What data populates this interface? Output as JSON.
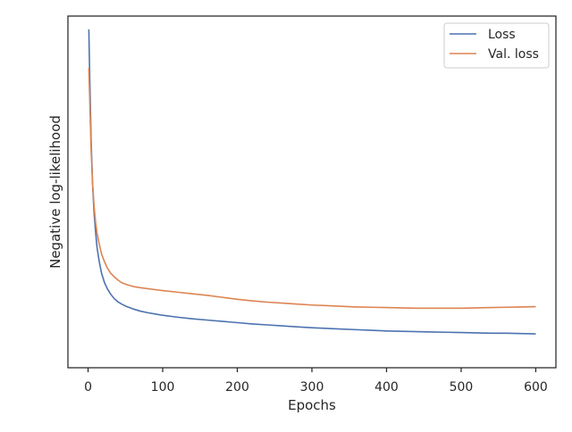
{
  "chart_data": {
    "type": "line",
    "xlabel": "Epochs",
    "ylabel": "Negative log-likelihood",
    "title": "",
    "xlim": [
      -27,
      627
    ],
    "ylim": [
      0,
      1
    ],
    "x_ticks": [
      0,
      100,
      200,
      300,
      400,
      500,
      600
    ],
    "x_tick_labels": [
      "0",
      "100",
      "200",
      "300",
      "400",
      "500",
      "600"
    ],
    "y_ticks": [],
    "grid": false,
    "legend_placement": "top-right",
    "series": [
      {
        "name": "Loss",
        "color": "#4c72b0",
        "x": [
          1,
          2,
          4,
          6,
          8,
          10,
          12,
          15,
          18,
          22,
          26,
          30,
          35,
          40,
          45,
          50,
          60,
          70,
          80,
          90,
          100,
          120,
          140,
          160,
          180,
          200,
          220,
          240,
          260,
          280,
          300,
          320,
          340,
          360,
          380,
          400,
          420,
          440,
          460,
          480,
          500,
          520,
          540,
          560,
          580,
          600
        ],
        "y": [
          1.0,
          0.88,
          0.66,
          0.52,
          0.43,
          0.37,
          0.32,
          0.275,
          0.24,
          0.21,
          0.19,
          0.175,
          0.16,
          0.15,
          0.143,
          0.137,
          0.128,
          0.121,
          0.116,
          0.112,
          0.108,
          0.102,
          0.097,
          0.093,
          0.089,
          0.085,
          0.081,
          0.078,
          0.075,
          0.072,
          0.069,
          0.067,
          0.065,
          0.063,
          0.061,
          0.059,
          0.058,
          0.057,
          0.056,
          0.055,
          0.054,
          0.053,
          0.052,
          0.052,
          0.051,
          0.05
        ]
      },
      {
        "name": "Val. loss",
        "color": "#dd8452",
        "x": [
          1,
          2,
          4,
          6,
          8,
          10,
          12,
          15,
          18,
          22,
          26,
          30,
          35,
          40,
          45,
          50,
          60,
          70,
          80,
          90,
          100,
          120,
          140,
          160,
          180,
          200,
          220,
          240,
          260,
          280,
          300,
          320,
          340,
          360,
          380,
          400,
          420,
          440,
          460,
          480,
          500,
          520,
          540,
          560,
          580,
          600
        ],
        "y": [
          0.88,
          0.8,
          0.63,
          0.52,
          0.45,
          0.4,
          0.365,
          0.33,
          0.3,
          0.275,
          0.255,
          0.24,
          0.228,
          0.218,
          0.21,
          0.205,
          0.198,
          0.194,
          0.191,
          0.188,
          0.185,
          0.18,
          0.175,
          0.17,
          0.164,
          0.158,
          0.153,
          0.149,
          0.146,
          0.143,
          0.14,
          0.138,
          0.136,
          0.134,
          0.133,
          0.132,
          0.131,
          0.13,
          0.13,
          0.13,
          0.13,
          0.131,
          0.132,
          0.133,
          0.134,
          0.135
        ]
      }
    ]
  }
}
